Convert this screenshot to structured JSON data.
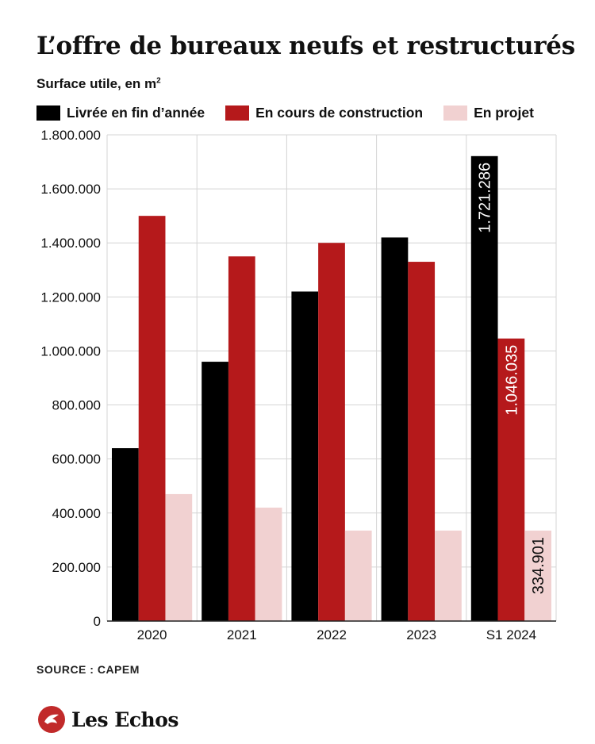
{
  "header": {
    "title": "L’offre de bureaux neufs et restructurés",
    "subtitle": "Surface utile, en m",
    "subtitle_sup": "2"
  },
  "legend": [
    {
      "label": "Livrée en fin d’année",
      "color": "#000000"
    },
    {
      "label": "En cours de construction",
      "color": "#b5191b"
    },
    {
      "label": "En projet",
      "color": "#f1d1d1"
    }
  ],
  "chart_data": {
    "type": "bar",
    "categories": [
      "2020",
      "2021",
      "2022",
      "2023",
      "S1 2024"
    ],
    "series": [
      {
        "name": "Livrée en fin d’année",
        "color": "#000000",
        "values": [
          640000,
          960000,
          1220000,
          1420000,
          1721286
        ]
      },
      {
        "name": "En cours de construction",
        "color": "#b5191b",
        "values": [
          1500000,
          1350000,
          1400000,
          1330000,
          1046035
        ]
      },
      {
        "name": "En projet",
        "color": "#f1d1d1",
        "values": [
          470000,
          420000,
          335000,
          335000,
          334901
        ]
      }
    ],
    "data_labels": [
      {
        "series": 0,
        "index": 4,
        "text": "1.721.286"
      },
      {
        "series": 1,
        "index": 4,
        "text": "1.046.035"
      },
      {
        "series": 2,
        "index": 4,
        "text": "334.901"
      }
    ],
    "ylim": [
      0,
      1800000
    ],
    "yticks": [
      0,
      200000,
      400000,
      600000,
      800000,
      1000000,
      1200000,
      1400000,
      1600000,
      1800000
    ],
    "ytick_labels": [
      "0",
      "200.000",
      "400.000",
      "600.000",
      "800.000",
      "1.000.000",
      "1.200.000",
      "1.400.000",
      "1.600.000",
      "1.800.000"
    ],
    "grid": true,
    "legend_position": "top"
  },
  "footer": {
    "source": "SOURCE : CAPEM",
    "brand": "Les Echos"
  }
}
